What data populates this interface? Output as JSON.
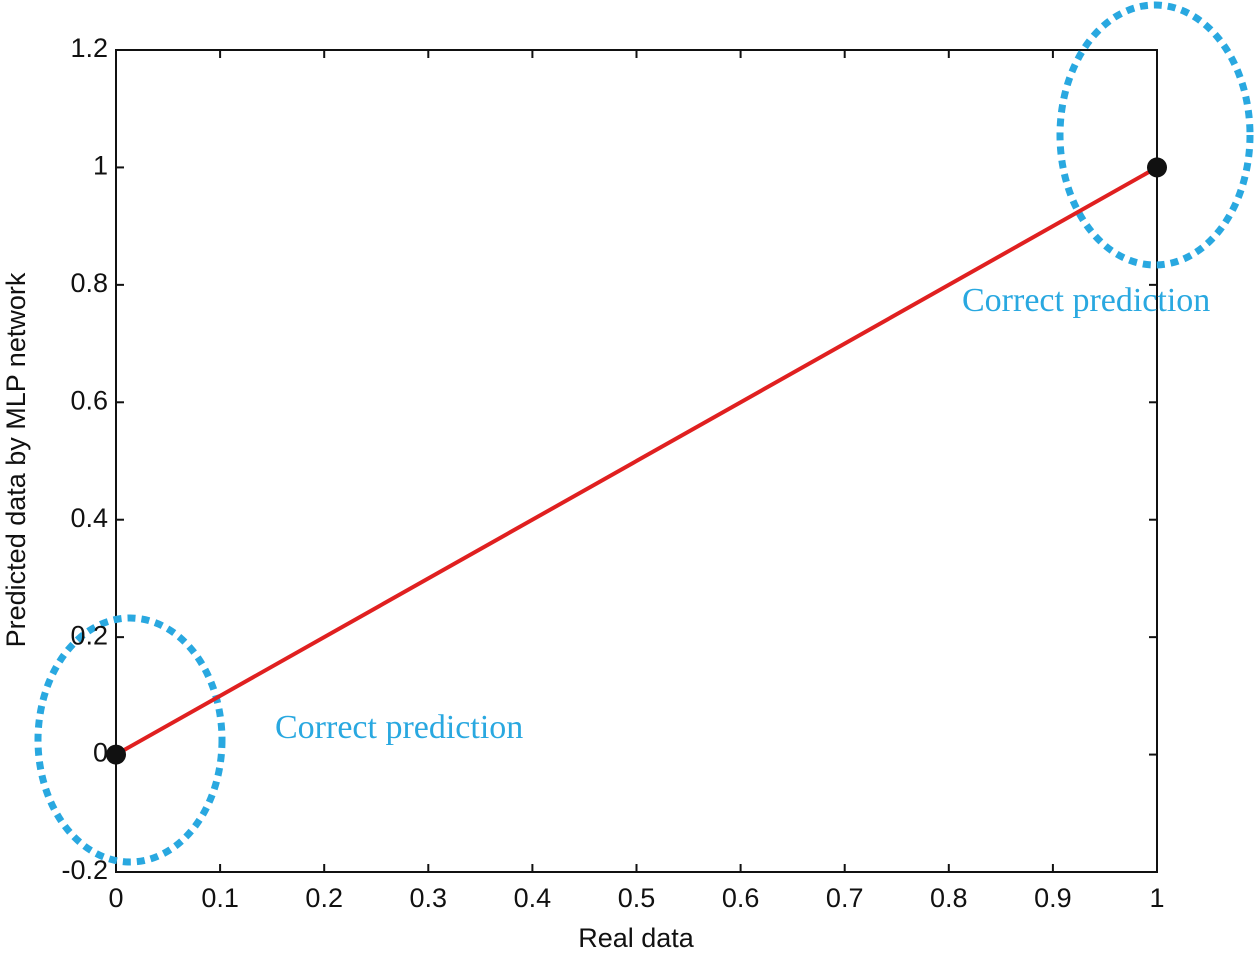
{
  "chart_data": {
    "type": "line",
    "x_label": "Real data",
    "y_label": "Predicted data by MLP network",
    "x": [
      0,
      1
    ],
    "values": [
      0,
      1
    ],
    "color": "#e02020",
    "marker_color": "#111111",
    "xlim": [
      0,
      1
    ],
    "ylim": [
      -0.2,
      1.2
    ],
    "xticks": [
      0,
      0.1,
      0.2,
      0.3,
      0.4,
      0.5,
      0.6,
      0.7,
      0.8,
      0.9,
      1
    ],
    "yticks": [
      -0.2,
      0,
      0.2,
      0.4,
      0.6,
      0.8,
      1,
      1.2
    ],
    "grid": false,
    "annotations": [
      "Correct prediction",
      "Correct prediction"
    ]
  }
}
